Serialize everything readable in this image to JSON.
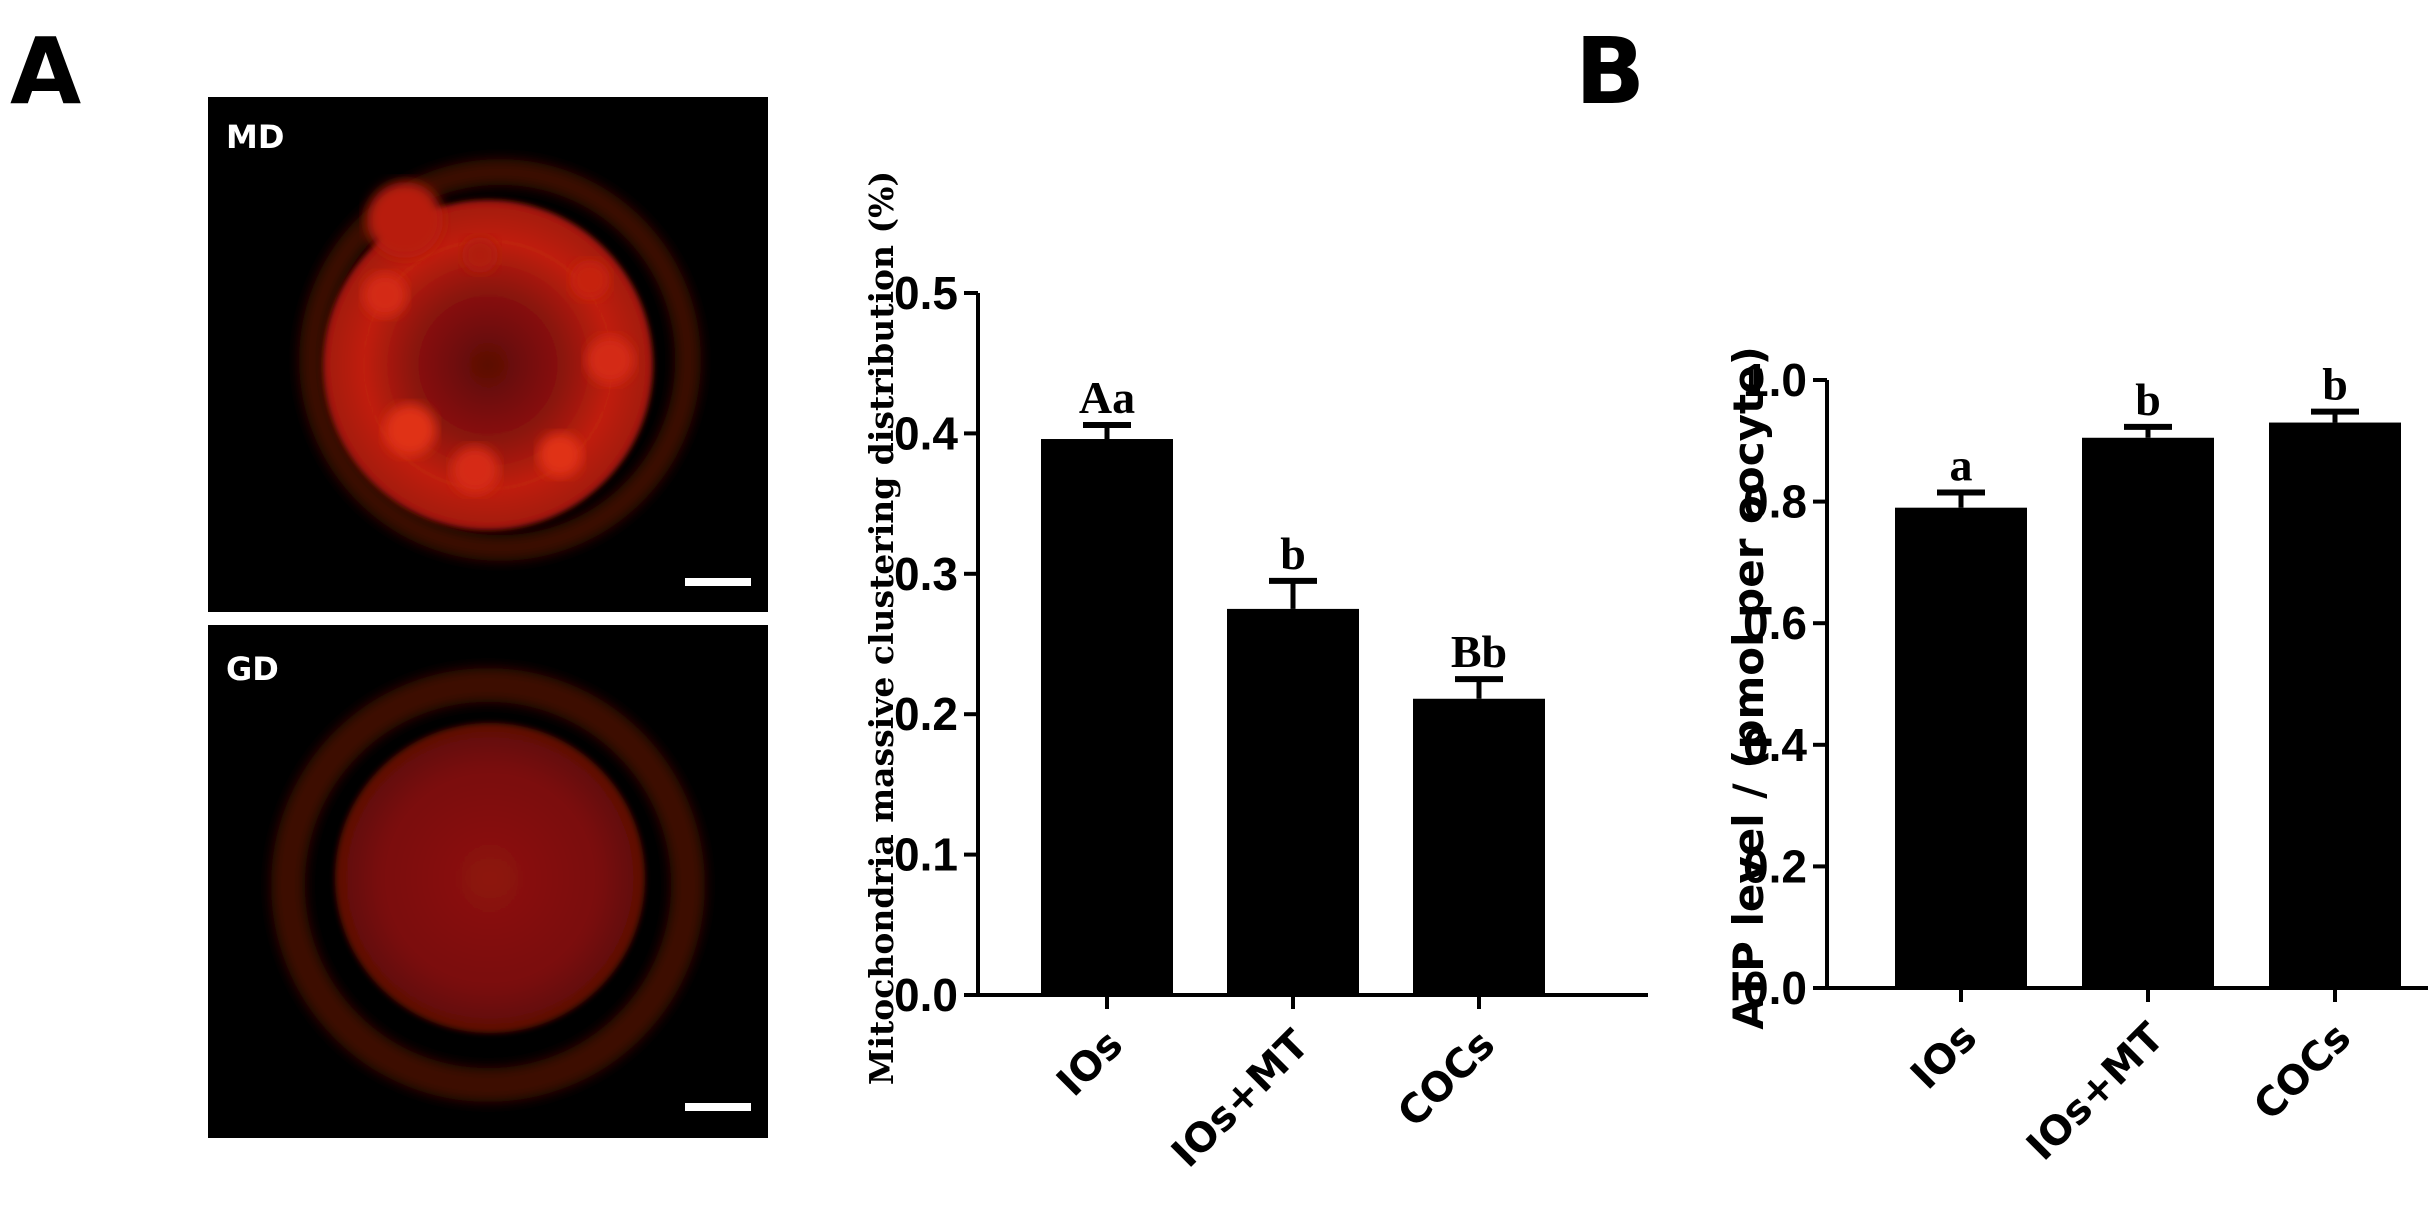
{
  "panels": {
    "a": "A",
    "b": "B"
  },
  "images": [
    {
      "label": "MD"
    },
    {
      "label": "GD"
    }
  ],
  "chart_data": [
    {
      "type": "bar",
      "panel": "A",
      "categories": [
        "IOs",
        "IOs+MT",
        "COCs"
      ],
      "values": [
        0.396,
        0.275,
        0.211
      ],
      "errors": [
        0.01,
        0.02,
        0.014
      ],
      "significance": [
        "Aa",
        "b",
        "Bb"
      ],
      "ylabel": "Mitochondria massive clustering distribution (%)",
      "ylim": [
        0,
        0.5
      ],
      "yticks": [
        "0.0",
        "0.1",
        "0.2",
        "0.3",
        "0.4",
        "0.5"
      ],
      "bar_color": "#000000"
    },
    {
      "type": "bar",
      "panel": "B",
      "categories": [
        "IOs",
        "IOs+MT",
        "COCs"
      ],
      "values": [
        0.79,
        0.905,
        0.93
      ],
      "errors": [
        0.025,
        0.018,
        0.018
      ],
      "significance": [
        "a",
        "b",
        "b"
      ],
      "ylabel": "ATP level / (pmol per oocyte)",
      "ylim": [
        0,
        1.0
      ],
      "yticks": [
        "0.0",
        "0.2",
        "0.4",
        "0.6",
        "0.8",
        "1.0"
      ],
      "bar_color": "#000000"
    }
  ]
}
